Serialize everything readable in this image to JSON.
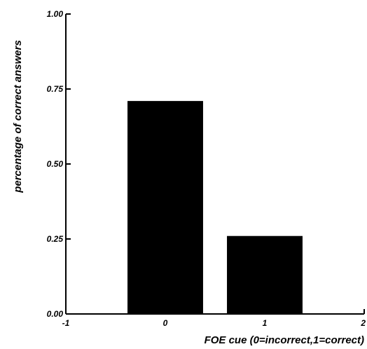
{
  "chart_data": {
    "type": "bar",
    "x": [
      0,
      1
    ],
    "values": [
      0.71,
      0.26
    ],
    "xlabel": "FOE cue (0=incorrect,1=correct)",
    "ylabel": "percentage of correct answers",
    "xlim": [
      -1,
      2
    ],
    "ylim": [
      0,
      1
    ],
    "x_ticks": [
      "-1",
      "0",
      "1",
      "2"
    ],
    "y_ticks": [
      "0.00",
      "0.25",
      "0.50",
      "0.75",
      "1.00"
    ],
    "bar_color": "#000000",
    "grid": false
  }
}
